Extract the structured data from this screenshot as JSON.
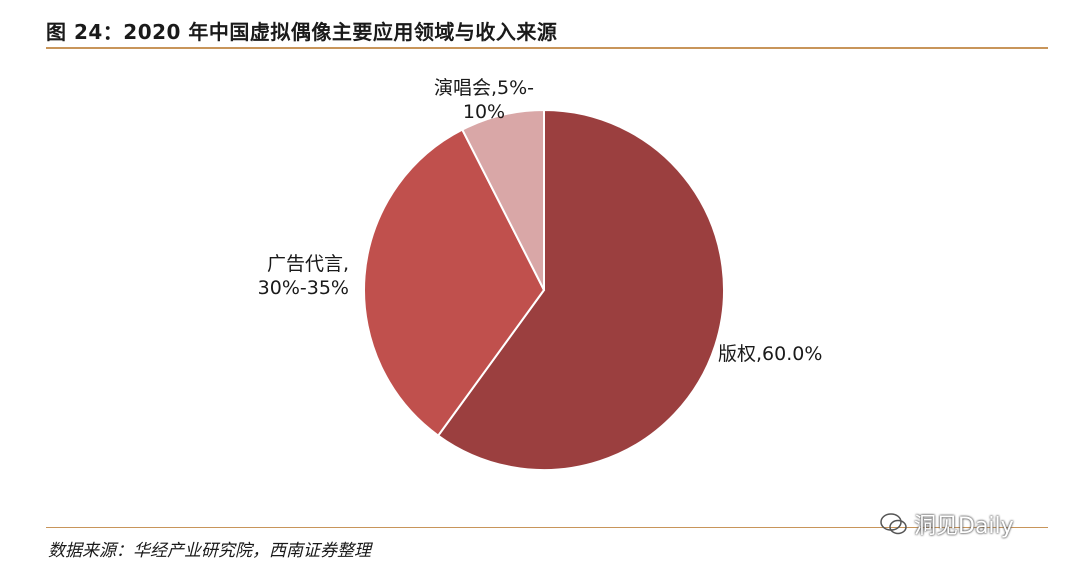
{
  "figure": {
    "title": "图 24：2020 年中国虚拟偶像主要应用领域与收入来源",
    "source": "数据来源：华经产业研究院，西南证券整理",
    "watermark": "洞见Daily"
  },
  "colors": {
    "rule": "#c8955a",
    "slice_1": "#9b3f3f",
    "slice_2": "#c0504d",
    "slice_3": "#d9a7a7"
  },
  "chart_data": {
    "type": "pie",
    "title": "",
    "slices": [
      {
        "name": "版权",
        "value": 60.0,
        "label_lines": [
          "版权,60.0%"
        ],
        "color": "#9b3f3f"
      },
      {
        "name": "广告代言",
        "value": 32.5,
        "label_lines": [
          "广告代言,",
          "30%-35%"
        ],
        "color": "#c0504d"
      },
      {
        "name": "演唱会",
        "value": 7.5,
        "label_lines": [
          "演唱会,5%-",
          "10%"
        ],
        "color": "#d9a7a7"
      }
    ],
    "start_angle": "12 o'clock",
    "direction": "clockwise"
  }
}
